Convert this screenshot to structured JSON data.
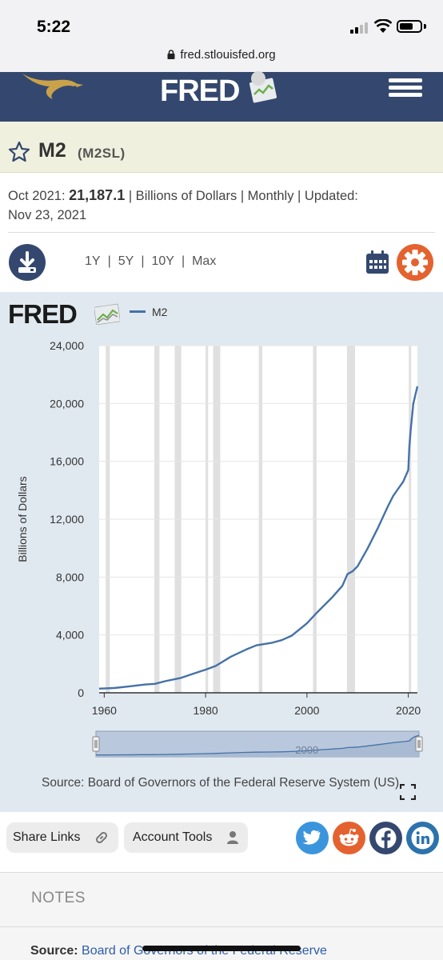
{
  "status_bar": {
    "time": "5:22"
  },
  "browser": {
    "url": "fred.stlouisfed.org"
  },
  "header": {
    "logo": "FRED"
  },
  "series": {
    "title": "M2",
    "id": "(M2SL)",
    "date_label": "Oct 2021:",
    "value": "21,187.1",
    "units": "| Billions of Dollars | Monthly | Updated:",
    "updated": "Nov 23, 2021"
  },
  "toolbar": {
    "ranges": [
      "1Y",
      "5Y",
      "10Y",
      "Max"
    ]
  },
  "chart_header": {
    "logo": "FRED",
    "legend": "M2"
  },
  "colors": {
    "header_bg": "#34486f",
    "line": "#4572a7",
    "accent": "#e4622f",
    "chart_bg": "#e1e9f0",
    "recession": "#e0e0e0"
  },
  "chart_data": {
    "type": "line",
    "ylabel": "Billions of Dollars",
    "xlabel": "",
    "xlim": [
      1959,
      2021.8
    ],
    "ylim": [
      0,
      24000
    ],
    "x_ticks": [
      1960,
      1980,
      2000,
      2020
    ],
    "y_ticks": [
      "0",
      "4,000",
      "8,000",
      "12,000",
      "16,000",
      "20,000",
      "24,000"
    ],
    "recessions": [
      [
        1960.3,
        1961.1
      ],
      [
        1969.9,
        1970.9
      ],
      [
        1973.9,
        1975.2
      ],
      [
        1980.0,
        1980.5
      ],
      [
        1981.5,
        1982.9
      ],
      [
        1990.5,
        1991.2
      ],
      [
        2001.2,
        2001.9
      ],
      [
        2007.9,
        2009.5
      ],
      [
        2020.1,
        2020.4
      ]
    ],
    "series": [
      {
        "name": "M2",
        "x": [
          1959,
          1962,
          1965,
          1968,
          1970,
          1972,
          1975,
          1978,
          1980,
          1982,
          1985,
          1988,
          1990,
          1993,
          1995,
          1997,
          2000,
          2002,
          2005,
          2007,
          2008,
          2009,
          2010,
          2012,
          2014,
          2016,
          2017,
          2018,
          2019,
          2020,
          2020.2,
          2020.5,
          2021,
          2021.8
        ],
        "values": [
          290,
          330,
          450,
          570,
          620,
          800,
          1020,
          1370,
          1600,
          1860,
          2500,
          2990,
          3280,
          3450,
          3640,
          3950,
          4800,
          5550,
          6600,
          7400,
          8200,
          8400,
          8750,
          10000,
          11400,
          12900,
          13600,
          14100,
          14600,
          15400,
          17000,
          18300,
          20000,
          21187
        ]
      }
    ],
    "navigator_label": "2000"
  },
  "source": {
    "text": "Source: Board of Governors of the Federal Reserve System (US)"
  },
  "actions": {
    "share": "Share Links",
    "account": "Account Tools"
  },
  "notes": {
    "label": "NOTES",
    "source_label": "Source:",
    "source_link": "Board of Governors of the Federal Reserve"
  }
}
